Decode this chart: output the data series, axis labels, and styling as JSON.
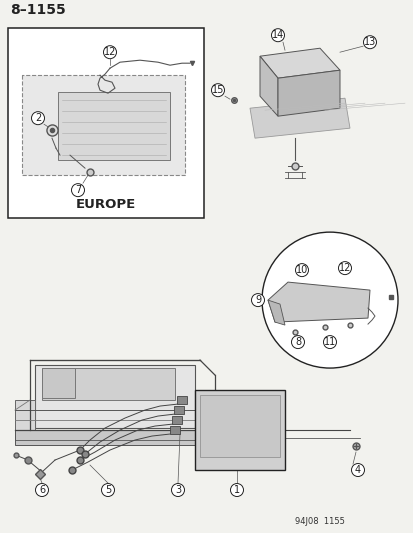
{
  "bg_color": "#f2f2ee",
  "page_num": "8–1155",
  "ref_code": "94J08  1155",
  "europe_label": "EUROPE",
  "title_fontsize": 10,
  "label_fontsize": 7,
  "small_label_fontsize": 6,
  "gray": "#555555",
  "dark": "#222222",
  "light_gray": "#cccccc",
  "mid_gray": "#aaaaaa"
}
